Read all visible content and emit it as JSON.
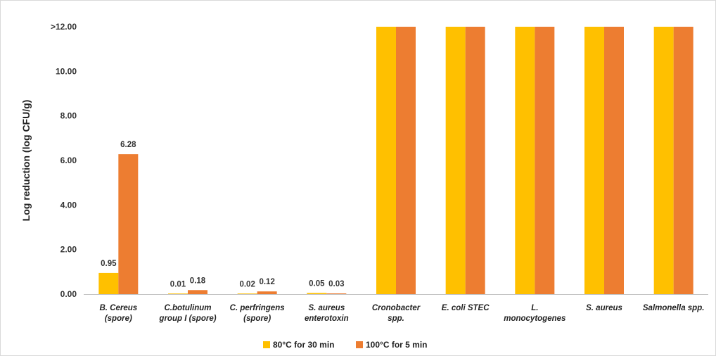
{
  "chart_data": {
    "type": "bar",
    "title": "",
    "xlabel": "",
    "ylabel": "Log reduction (log CFU/g)",
    "ylim": [
      0,
      12
    ],
    "yticks": [
      "0.00",
      "2.00",
      "4.00",
      "6.00",
      "8.00",
      "10.00",
      ">12.00"
    ],
    "grid": false,
    "legend_position": "bottom",
    "categories": [
      [
        "B. Cereus",
        "(spore)"
      ],
      [
        "C.botulinum",
        "group I (spore)"
      ],
      [
        "C. perfringens",
        "(spore)"
      ],
      [
        "S. aureus",
        "enterotoxin"
      ],
      [
        "Cronobacter",
        "spp."
      ],
      [
        "E. coli STEC"
      ],
      [
        "L.",
        "monocytogenes"
      ],
      [
        "S. aureus"
      ],
      [
        "Salmonella spp."
      ]
    ],
    "series": [
      {
        "name": "80°C for 30 min",
        "color": "#FFC000",
        "values": [
          0.95,
          0.01,
          0.02,
          0.05,
          12,
          12,
          12,
          12,
          12
        ],
        "labels": [
          "0.95",
          "0.01",
          "0.02",
          "0.05",
          "",
          "",
          "",
          "",
          ""
        ]
      },
      {
        "name": "100°C for 5 min",
        "color": "#ED7D31",
        "values": [
          6.28,
          0.18,
          0.12,
          0.03,
          12,
          12,
          12,
          12,
          12
        ],
        "labels": [
          "6.28",
          "0.18",
          "0.12",
          "0.03",
          "",
          "",
          "",
          "",
          ""
        ]
      }
    ]
  }
}
